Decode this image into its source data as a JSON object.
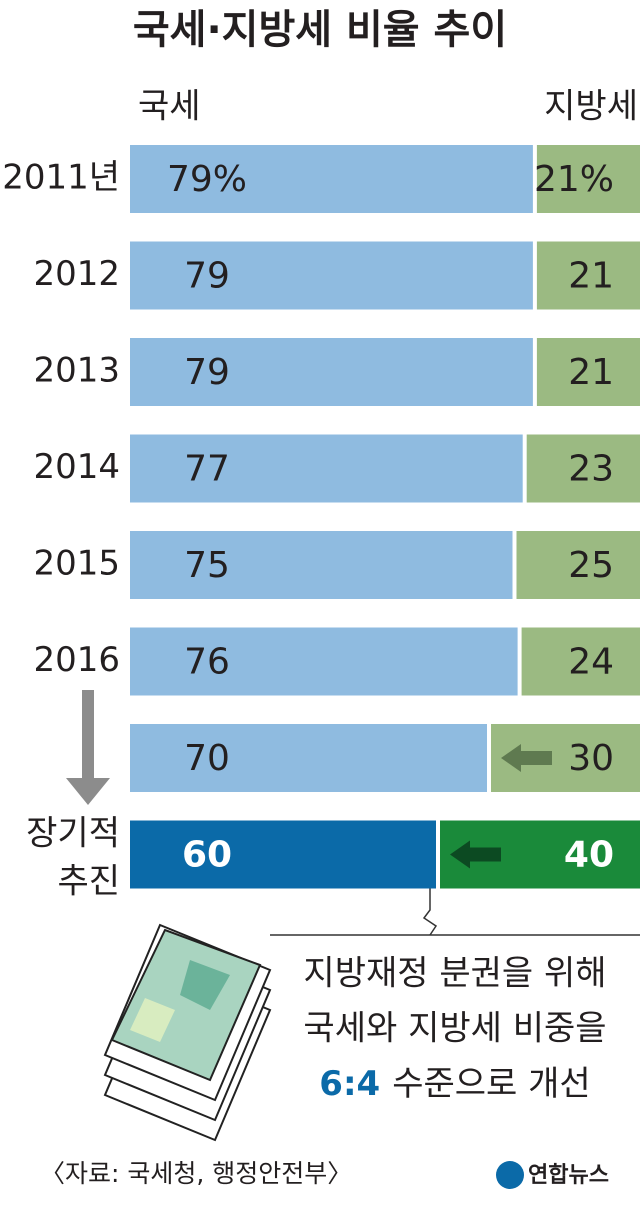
{
  "chart_data": {
    "type": "stacked_bar_horizontal",
    "title": "국세·지방세 비율 추이",
    "categories": [
      "2011년",
      "2012",
      "2013",
      "2014",
      "2015",
      "2016",
      null,
      "장기적 추진"
    ],
    "series": [
      {
        "name": "국세",
        "colors": [
          "#8fbbe0",
          "#8fbbe0",
          "#8fbbe0",
          "#8fbbe0",
          "#8fbbe0",
          "#8fbbe0",
          "#8fbbe0",
          "#0b6aa8"
        ],
        "values": [
          79,
          79,
          79,
          77,
          75,
          76,
          70,
          60
        ],
        "value_labels": [
          "79%",
          "79",
          "79",
          "77",
          "75",
          "76",
          "70",
          "60"
        ]
      },
      {
        "name": "지방세",
        "colors": [
          "#9bba82",
          "#9bba82",
          "#9bba82",
          "#9bba82",
          "#9bba82",
          "#9bba82",
          "#9bba82",
          "#1a8a3a"
        ],
        "values": [
          21,
          21,
          21,
          23,
          25,
          24,
          30,
          40
        ],
        "value_labels": [
          "21%",
          "21",
          "21",
          "23",
          "25",
          "24",
          "30",
          "40"
        ]
      }
    ],
    "xlim": [
      0,
      100
    ],
    "annotation": {
      "lines": [
        "지방재정 분권을 위해",
        "국세와 지방세 비중을"
      ],
      "highlight": "6:4",
      "tail": "수준으로 개선"
    },
    "source": "〈자료: 국세청, 행정안전부〉",
    "logo": "연합뉴스"
  }
}
